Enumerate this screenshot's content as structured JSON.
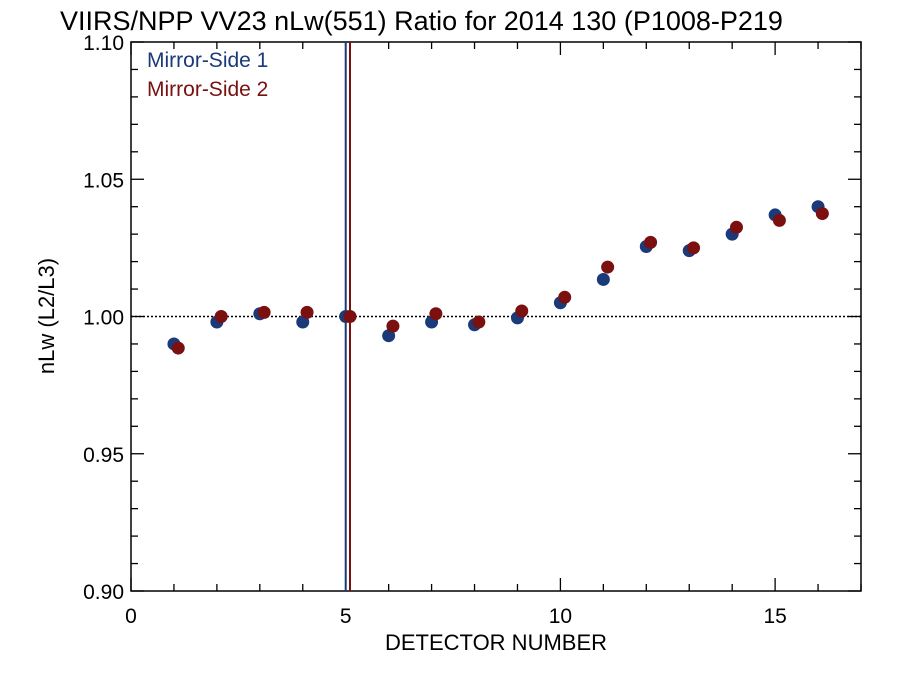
{
  "chart_data": {
    "type": "scatter",
    "title": "VIIRS/NPP VV23 nLw(551) Ratio for 2014 130 (P1008-P219",
    "xlabel": "DETECTOR NUMBER",
    "ylabel": "nLw (L2/L3)",
    "xlim": [
      0,
      17
    ],
    "ylim": [
      0.9,
      1.1
    ],
    "xticks": [
      0,
      5,
      10,
      15
    ],
    "xtick_labels": [
      "0",
      "5",
      "10",
      "15"
    ],
    "yticks": [
      0.9,
      0.95,
      1.0,
      1.05,
      1.1
    ],
    "ytick_labels": [
      "0.90",
      "0.95",
      "1.00",
      "1.05",
      "1.10"
    ],
    "reference_line": {
      "y": 1.0,
      "style": "dotted"
    },
    "vertical_lines": [
      {
        "x": 5.0,
        "series": "Mirror-Side 1"
      },
      {
        "x": 5.1,
        "series": "Mirror-Side 2"
      }
    ],
    "legend_position": "top-left",
    "grid": false,
    "series": [
      {
        "name": "Mirror-Side 1",
        "color": "#1a3a7a",
        "x": [
          1,
          2,
          3,
          4,
          5,
          6,
          7,
          8,
          9,
          10,
          11,
          12,
          13,
          14,
          15,
          16
        ],
        "y": [
          0.99,
          0.998,
          1.001,
          0.998,
          1.0,
          0.993,
          0.998,
          0.997,
          0.9995,
          1.005,
          1.0135,
          1.0255,
          1.024,
          1.03,
          1.037,
          1.04
        ]
      },
      {
        "name": "Mirror-Side 2",
        "color": "#7a1010",
        "x": [
          1.1,
          2.1,
          3.1,
          4.1,
          5.1,
          6.1,
          7.1,
          8.1,
          9.1,
          10.1,
          11.1,
          12.1,
          13.1,
          14.1,
          15.1,
          16.1
        ],
        "y": [
          0.9885,
          1.0,
          1.0015,
          1.0015,
          1.0,
          0.9965,
          1.001,
          0.998,
          1.002,
          1.007,
          1.018,
          1.027,
          1.025,
          1.0325,
          1.035,
          1.0375
        ]
      }
    ]
  }
}
